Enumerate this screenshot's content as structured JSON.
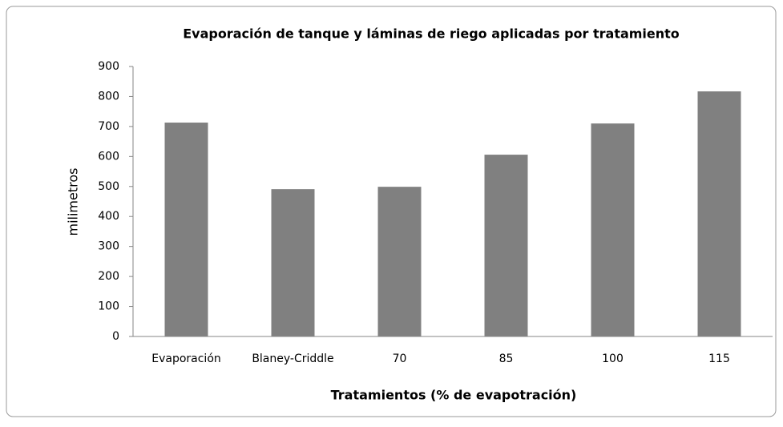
{
  "chart_data": {
    "type": "bar",
    "title": "Evaporación de tanque y láminas de riego aplicadas por tratamiento",
    "x_label": "Tratamientos (% de evapotración)",
    "y_label": "milimetros",
    "categories": [
      "Evaporación",
      "Blaney-Criddle",
      "70",
      "85",
      "100",
      "115"
    ],
    "values": [
      713,
      491,
      499,
      606,
      710,
      817
    ],
    "color": "#808080",
    "ylim": [
      0,
      900
    ],
    "yticks": [
      0,
      100,
      200,
      300,
      400,
      500,
      600,
      700,
      800,
      900
    ],
    "grid": false
  }
}
